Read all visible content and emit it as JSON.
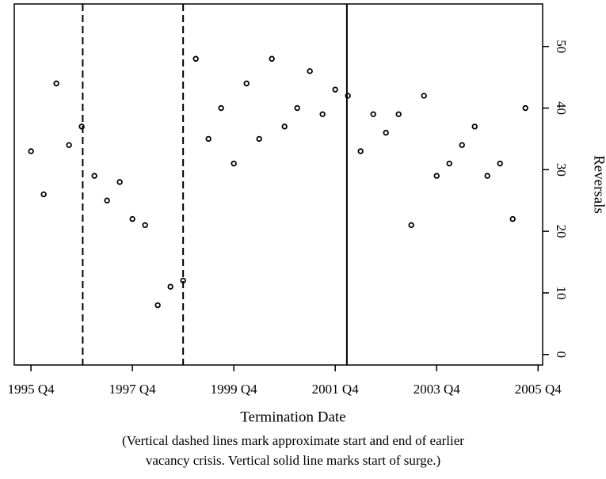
{
  "chart_data": {
    "type": "scatter",
    "xlabel": "Termination Date",
    "ylabel": "Reversals",
    "caption": [
      "(Vertical dashed lines mark approximate start and end of earlier",
      "vacancy crisis.  Vertical solid line marks start of surge.)"
    ],
    "x": [
      1995.75,
      1996.0,
      1996.25,
      1996.5,
      1996.75,
      1997.0,
      1997.25,
      1997.5,
      1997.75,
      1998.0,
      1998.25,
      1998.5,
      1998.75,
      1999.0,
      1999.25,
      1999.5,
      1999.75,
      2000.0,
      2000.25,
      2000.5,
      2000.75,
      2001.0,
      2001.25,
      2001.5,
      2001.75,
      2002.0,
      2002.25,
      2002.5,
      2002.75,
      2003.0,
      2003.25,
      2003.5,
      2003.75,
      2004.0,
      2004.25,
      2004.5,
      2004.75,
      2005.0,
      2005.25,
      2005.5
    ],
    "values": [
      33,
      26,
      44,
      34,
      37,
      29,
      25,
      28,
      22,
      21,
      8,
      11,
      12,
      48,
      35,
      40,
      31,
      44,
      35,
      48,
      37,
      40,
      46,
      39,
      43,
      42,
      33,
      39,
      36,
      39,
      21,
      42,
      29,
      31,
      34,
      37,
      29,
      31,
      22,
      40
    ],
    "color": "#000000",
    "xlim": [
      1995.42,
      2005.84
    ],
    "ylim": [
      -1.7,
      56.9
    ],
    "xticks": [
      {
        "value": 1995.75,
        "label": "1995 Q4"
      },
      {
        "value": 1997.75,
        "label": "1997 Q4"
      },
      {
        "value": 1999.75,
        "label": "1999 Q4"
      },
      {
        "value": 2001.75,
        "label": "2001 Q4"
      },
      {
        "value": 2003.75,
        "label": "2003 Q4"
      },
      {
        "value": 2005.75,
        "label": "2005 Q4"
      }
    ],
    "yticks": [
      0,
      10,
      20,
      30,
      40,
      50
    ],
    "y_axis_side": "right",
    "grid": false,
    "vlines": [
      {
        "x": 1996.77,
        "style": "dashed"
      },
      {
        "x": 1998.75,
        "style": "dashed"
      },
      {
        "x": 2001.98,
        "style": "solid"
      }
    ]
  }
}
